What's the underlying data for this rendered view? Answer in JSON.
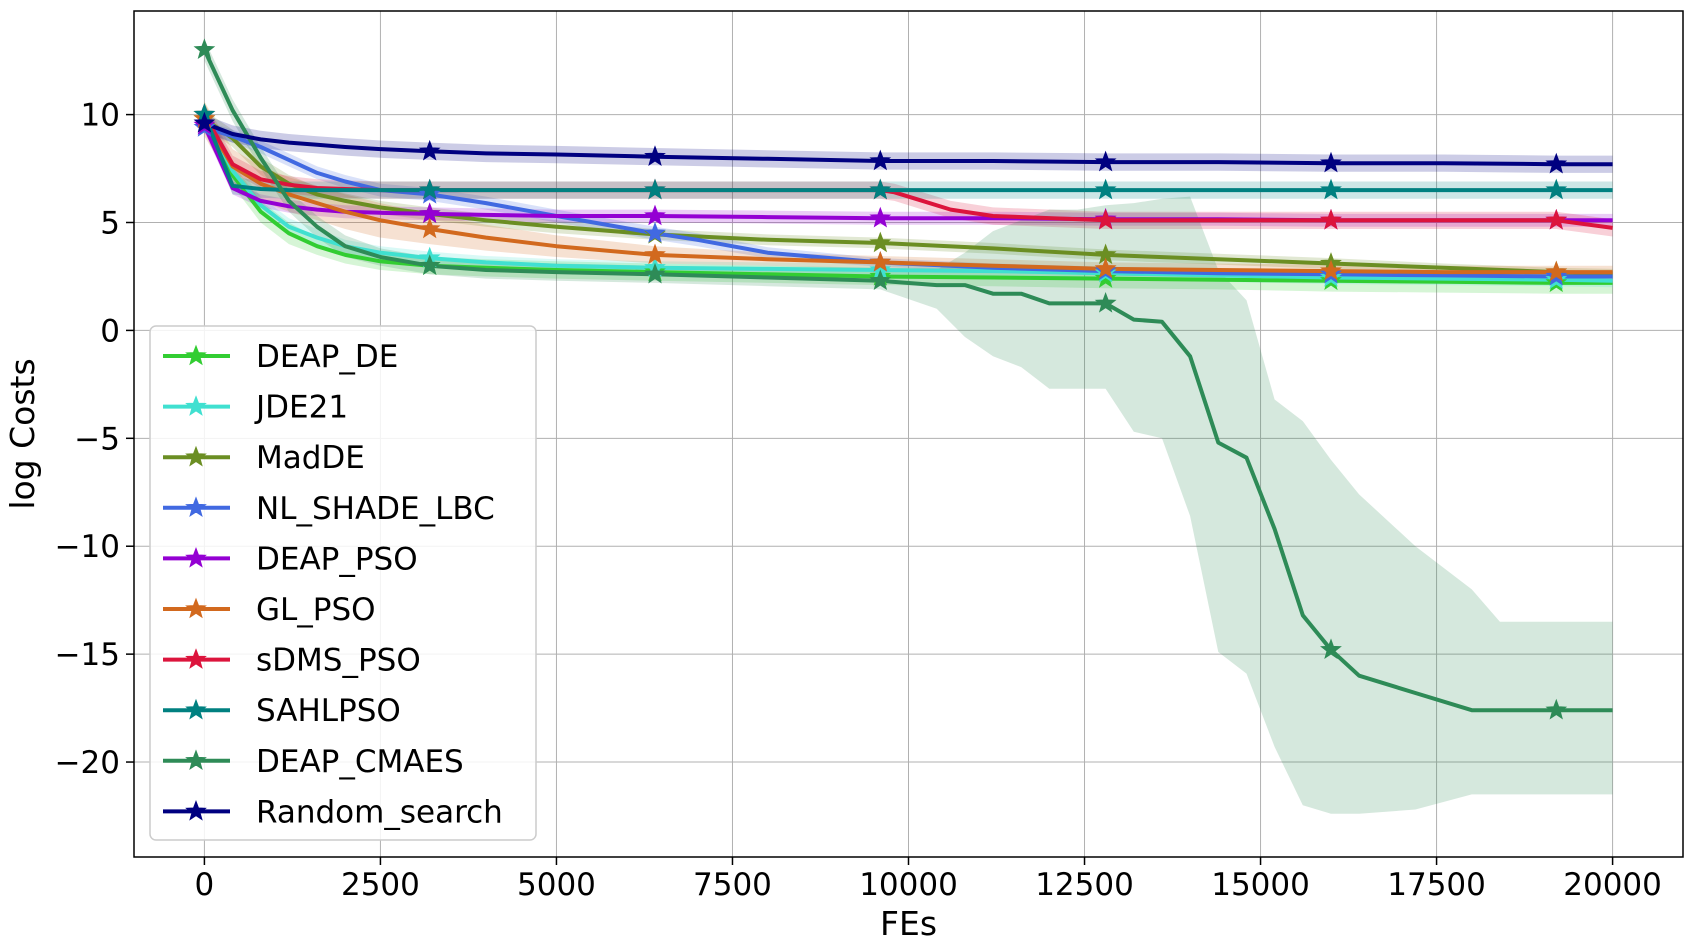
{
  "chart_data": {
    "type": "line",
    "title": "",
    "xlabel": "FEs",
    "ylabel": "log Costs",
    "xlim": [
      -1000,
      21000
    ],
    "ylim": [
      -24.4,
      14.8
    ],
    "xticks": [
      0,
      2500,
      5000,
      7500,
      10000,
      12500,
      15000,
      17500,
      20000
    ],
    "xtick_labels": [
      "0",
      "2500",
      "5000",
      "7500",
      "10000",
      "12500",
      "15000",
      "17500",
      "20000"
    ],
    "yticks": [
      10,
      5,
      0,
      -5,
      -10,
      -15,
      -20
    ],
    "ytick_labels": [
      "10",
      "5",
      "0",
      "−5",
      "−10",
      "−15",
      "−20"
    ],
    "grid": true,
    "legend_position": "lower-left",
    "marker_x": [
      0,
      3200,
      6400,
      9600,
      12800,
      16000,
      19200
    ],
    "series": [
      {
        "name": "DEAP_DE",
        "color": "#32cd32",
        "x": [
          0,
          400,
          800,
          1200,
          1600,
          2000,
          2500,
          3200,
          4000,
          5000,
          6400,
          8000,
          9600,
          11200,
          12800,
          14400,
          16000,
          17600,
          19200,
          20000
        ],
        "y": [
          10,
          7.2,
          5.5,
          4.5,
          3.9,
          3.5,
          3.2,
          3.0,
          2.9,
          2.8,
          2.7,
          2.6,
          2.5,
          2.45,
          2.4,
          2.35,
          2.3,
          2.25,
          2.2,
          2.2
        ],
        "band": [
          0.6,
          0.5,
          0.5,
          0.5,
          0.4,
          0.4,
          0.4,
          0.4,
          0.4,
          0.4,
          0.4,
          0.4,
          0.4,
          0.4,
          0.45,
          0.45,
          0.5,
          0.5,
          0.5,
          0.5
        ]
      },
      {
        "name": "JDE21",
        "color": "#40e0d0",
        "x": [
          0,
          400,
          800,
          1200,
          1600,
          2000,
          2500,
          3200,
          4000,
          5000,
          6400,
          8000,
          9600,
          11200,
          12800,
          14400,
          16000,
          17600,
          19200,
          20000
        ],
        "y": [
          10,
          7.4,
          5.8,
          4.8,
          4.3,
          3.9,
          3.6,
          3.35,
          3.15,
          3.0,
          2.9,
          2.85,
          2.8,
          2.75,
          2.65,
          2.55,
          2.45,
          2.4,
          2.35,
          2.3
        ],
        "band": [
          0.5,
          0.5,
          0.4,
          0.4,
          0.4,
          0.3,
          0.3,
          0.3,
          0.3,
          0.3,
          0.3,
          0.3,
          0.3,
          0.3,
          0.3,
          0.3,
          0.3,
          0.3,
          0.3,
          0.3
        ]
      },
      {
        "name": "MadDE",
        "color": "#6b8e23",
        "x": [
          0,
          400,
          800,
          1200,
          1600,
          2000,
          2500,
          3200,
          4000,
          5000,
          6400,
          8000,
          9600,
          11200,
          12800,
          14400,
          16000,
          17600,
          19200,
          20000
        ],
        "y": [
          9.8,
          8.9,
          7.6,
          6.8,
          6.3,
          6.0,
          5.7,
          5.4,
          5.1,
          4.8,
          4.45,
          4.2,
          4.05,
          3.8,
          3.5,
          3.3,
          3.1,
          2.9,
          2.7,
          2.65
        ],
        "band": [
          0.4,
          0.4,
          0.4,
          0.4,
          0.35,
          0.35,
          0.3,
          0.3,
          0.3,
          0.3,
          0.25,
          0.25,
          0.25,
          0.25,
          0.25,
          0.25,
          0.25,
          0.2,
          0.2,
          0.2
        ]
      },
      {
        "name": "NL_SHADE_LBC",
        "color": "#4169e1",
        "x": [
          0,
          400,
          800,
          1200,
          1600,
          2000,
          2500,
          3200,
          4000,
          5000,
          6400,
          7000,
          8000,
          9600,
          11200,
          12800,
          14400,
          16000,
          17600,
          19200,
          20000
        ],
        "y": [
          9.4,
          9.0,
          8.5,
          7.9,
          7.3,
          6.9,
          6.5,
          6.3,
          5.9,
          5.3,
          4.5,
          4.2,
          3.6,
          3.15,
          2.9,
          2.75,
          2.65,
          2.6,
          2.55,
          2.5,
          2.5
        ],
        "band": [
          0.3,
          0.3,
          0.3,
          0.3,
          0.3,
          0.3,
          0.3,
          0.3,
          0.3,
          0.3,
          0.3,
          0.3,
          0.25,
          0.2,
          0.2,
          0.2,
          0.2,
          0.2,
          0.2,
          0.2,
          0.2
        ]
      },
      {
        "name": "DEAP_PSO",
        "color": "#9400d3",
        "x": [
          0,
          400,
          800,
          1200,
          1600,
          2000,
          2500,
          3200,
          4000,
          5000,
          6400,
          8000,
          9600,
          11200,
          12800,
          14400,
          16000,
          17600,
          19200,
          20000
        ],
        "y": [
          9.5,
          6.6,
          6.0,
          5.75,
          5.6,
          5.5,
          5.45,
          5.4,
          5.35,
          5.3,
          5.3,
          5.25,
          5.2,
          5.2,
          5.15,
          5.15,
          5.1,
          5.1,
          5.1,
          5.1
        ],
        "band": [
          0.3,
          0.3,
          0.3,
          0.3,
          0.3,
          0.3,
          0.3,
          0.3,
          0.3,
          0.3,
          0.3,
          0.3,
          0.3,
          0.3,
          0.3,
          0.3,
          0.3,
          0.3,
          0.3,
          0.3
        ]
      },
      {
        "name": "GL_PSO",
        "color": "#d2691e",
        "x": [
          0,
          400,
          800,
          1200,
          1600,
          2000,
          2500,
          3200,
          4000,
          5000,
          6400,
          8000,
          9600,
          11200,
          12800,
          14400,
          16000,
          17600,
          19200,
          20000
        ],
        "y": [
          9.8,
          7.6,
          6.8,
          6.3,
          5.9,
          5.5,
          5.1,
          4.7,
          4.3,
          3.9,
          3.5,
          3.3,
          3.15,
          3.0,
          2.85,
          2.8,
          2.75,
          2.7,
          2.7,
          2.7
        ],
        "band": [
          0.8,
          0.8,
          0.8,
          0.8,
          0.8,
          0.8,
          0.8,
          0.7,
          0.6,
          0.5,
          0.4,
          0.3,
          0.3,
          0.3,
          0.3,
          0.3,
          0.3,
          0.3,
          0.3,
          0.3
        ]
      },
      {
        "name": "sDMS_PSO",
        "color": "#dc143c",
        "x": [
          0,
          400,
          800,
          1200,
          1600,
          2000,
          2500,
          3200,
          4000,
          5000,
          6400,
          8000,
          9600,
          9800,
          10200,
          10600,
          11200,
          12800,
          14400,
          16000,
          17600,
          19200,
          20000
        ],
        "y": [
          10,
          7.7,
          7.0,
          6.75,
          6.6,
          6.55,
          6.5,
          6.5,
          6.5,
          6.5,
          6.5,
          6.5,
          6.5,
          6.4,
          6.0,
          5.6,
          5.3,
          5.1,
          5.1,
          5.1,
          5.1,
          5.1,
          4.75
        ],
        "band": [
          0.5,
          0.4,
          0.4,
          0.4,
          0.4,
          0.4,
          0.4,
          0.4,
          0.4,
          0.4,
          0.4,
          0.4,
          0.4,
          0.4,
          0.4,
          0.4,
          0.4,
          0.4,
          0.4,
          0.4,
          0.4,
          0.4,
          0.4
        ]
      },
      {
        "name": "SAHLPSO",
        "color": "#008080",
        "x": [
          0,
          400,
          800,
          1200,
          1600,
          2000,
          3200,
          6400,
          9600,
          12800,
          16000,
          19200,
          20000
        ],
        "y": [
          10,
          6.7,
          6.55,
          6.5,
          6.5,
          6.5,
          6.5,
          6.5,
          6.5,
          6.5,
          6.5,
          6.5,
          6.5
        ],
        "band": [
          0.4,
          0.4,
          0.4,
          0.4,
          0.4,
          0.4,
          0.4,
          0.4,
          0.4,
          0.4,
          0.4,
          0.4,
          0.4
        ]
      },
      {
        "name": "DEAP_CMAES",
        "color": "#2e8b57",
        "x": [
          0,
          400,
          800,
          1200,
          1600,
          2000,
          2500,
          3200,
          4000,
          5000,
          6400,
          8000,
          9600,
          10400,
          10800,
          11200,
          11600,
          12000,
          12400,
          12800,
          13200,
          13600,
          14000,
          14400,
          14800,
          15200,
          15600,
          16000,
          16400,
          17200,
          18000,
          18400,
          19200,
          20000
        ],
        "y": [
          13,
          10.2,
          8.0,
          6.0,
          4.8,
          3.9,
          3.4,
          3.0,
          2.8,
          2.7,
          2.6,
          2.45,
          2.3,
          2.1,
          2.1,
          1.7,
          1.7,
          1.25,
          1.25,
          1.25,
          0.5,
          0.4,
          -1.2,
          -5.2,
          -5.9,
          -9.2,
          -13.2,
          -14.8,
          -16.0,
          -16.8,
          -17.6,
          -17.6,
          -17.6,
          -17.6
        ],
        "band": [
          0.5,
          0.5,
          0.5,
          0.5,
          0.5,
          0.5,
          0.4,
          0.4,
          0.4,
          0.4,
          0.4,
          0.4,
          0.4,
          1.5,
          2.4,
          2.9,
          3.6,
          3.9,
          4.0,
          4.0,
          4.2,
          4.6,
          5.6,
          8.0,
          7.3,
          6.4,
          5.6,
          5.0,
          4.5,
          4.2,
          4.0,
          4.0,
          4.0,
          4.0
        ],
        "lower": [
          12.5,
          9.7,
          7.5,
          5.5,
          4.3,
          3.4,
          3.0,
          2.6,
          2.4,
          2.3,
          2.2,
          2.05,
          1.9,
          1.0,
          -0.3,
          -1.2,
          -1.7,
          -2.7,
          -2.7,
          -2.7,
          -4.7,
          -5.0,
          -8.6,
          -14.9,
          -15.9,
          -19.3,
          -22.0,
          -22.4,
          -22.4,
          -22.2,
          -21.5,
          -21.5,
          -21.5,
          -21.5
        ],
        "upper": [
          13.5,
          10.7,
          8.5,
          6.5,
          5.3,
          4.4,
          3.8,
          3.4,
          3.2,
          3.1,
          3.0,
          2.85,
          2.7,
          2.8,
          3.6,
          4.6,
          5.1,
          5.6,
          5.6,
          5.8,
          5.9,
          6.1,
          6.2,
          2.8,
          1.4,
          -3.2,
          -4.2,
          -6.0,
          -7.6,
          -10.0,
          -12.0,
          -13.5,
          -13.5,
          -13.5
        ]
      },
      {
        "name": "Random_search",
        "color": "#000080",
        "x": [
          0,
          400,
          800,
          1200,
          1600,
          2000,
          2500,
          3200,
          4000,
          5000,
          6400,
          8000,
          9600,
          11200,
          12800,
          14400,
          16000,
          17600,
          19200,
          20000
        ],
        "y": [
          9.6,
          9.1,
          8.85,
          8.7,
          8.6,
          8.5,
          8.4,
          8.3,
          8.2,
          8.15,
          8.05,
          7.95,
          7.85,
          7.85,
          7.8,
          7.8,
          7.75,
          7.75,
          7.7,
          7.7
        ],
        "band": [
          0.4,
          0.4,
          0.4,
          0.4,
          0.4,
          0.4,
          0.4,
          0.4,
          0.4,
          0.4,
          0.4,
          0.4,
          0.4,
          0.4,
          0.4,
          0.4,
          0.4,
          0.4,
          0.4,
          0.4
        ]
      }
    ]
  }
}
